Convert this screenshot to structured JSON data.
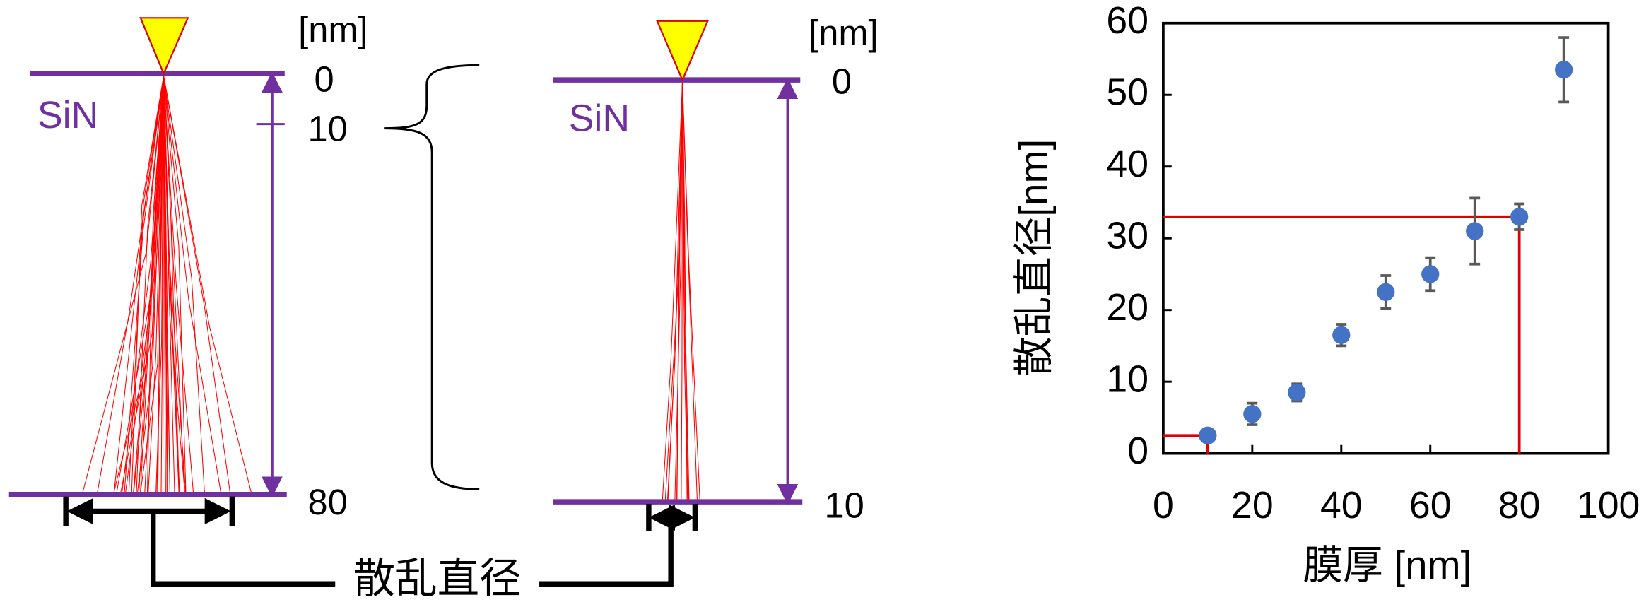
{
  "diagram": {
    "left": {
      "unit": "[nm]",
      "material": "SiN",
      "labels": [
        "0",
        "10",
        "80"
      ]
    },
    "right": {
      "unit": "[nm]",
      "material": "SiN",
      "labels": [
        "0",
        "10"
      ]
    },
    "caption": "散乱直径"
  },
  "chart_data": {
    "type": "scatter",
    "xlabel": "膜厚 [nm]",
    "ylabel": "散乱直径[nm]",
    "x": [
      10,
      20,
      30,
      40,
      50,
      60,
      70,
      80,
      90
    ],
    "series": [
      {
        "color": "#4472c4",
        "error_color": "#595959",
        "values": [
          2.5,
          5.5,
          8.5,
          16.5,
          22.5,
          25,
          31,
          33,
          53.5
        ],
        "errors": [
          0.5,
          1.5,
          1.2,
          1.5,
          2.3,
          2.3,
          4.6,
          1.8,
          4.5
        ]
      }
    ],
    "xlim": [
      0,
      100
    ],
    "ylim": [
      0,
      60
    ],
    "xticks": [
      0,
      20,
      40,
      60,
      80,
      100
    ],
    "yticks": [
      0,
      10,
      20,
      30,
      40,
      50,
      60
    ],
    "guide_color": "#e00000",
    "guide_points": [
      0,
      7
    ]
  }
}
